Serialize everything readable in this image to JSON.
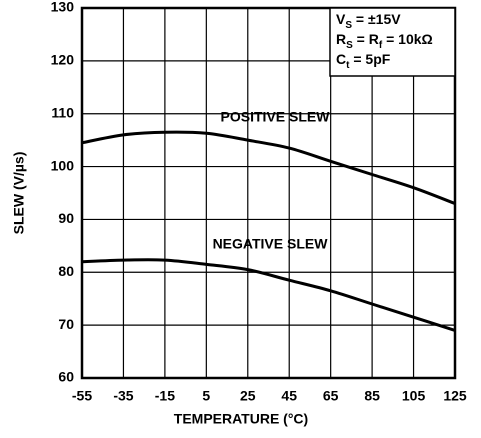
{
  "chart_data": {
    "type": "line",
    "x_label": "TEMPERATURE (°C)",
    "y_label": "SLEW (V/µs)",
    "x": [
      -55,
      -35,
      -15,
      5,
      25,
      45,
      65,
      85,
      105,
      125
    ],
    "series": [
      {
        "name": "POSITIVE SLEW",
        "color": "#000000",
        "values": [
          104.5,
          106,
          106.5,
          106.3,
          105,
          103.5,
          101,
          98.5,
          96,
          93
        ]
      },
      {
        "name": "NEGATIVE SLEW",
        "color": "#000000",
        "values": [
          82,
          82.3,
          82.3,
          81.5,
          80.5,
          78.5,
          76.5,
          74,
          71.5,
          69
        ]
      }
    ],
    "xlim": [
      -55,
      125
    ],
    "xticks": [
      -55,
      -35,
      -15,
      5,
      25,
      45,
      65,
      85,
      105,
      125
    ],
    "ylim": [
      60,
      130
    ],
    "yticks": [
      60,
      70,
      80,
      90,
      100,
      110,
      120,
      130
    ],
    "grid": true,
    "annotation": [
      [
        {
          "text": "V"
        },
        {
          "text": "S",
          "sub": true
        },
        {
          "text": " = ±15V"
        }
      ],
      [
        {
          "text": "R"
        },
        {
          "text": "S",
          "sub": true
        },
        {
          "text": " = R"
        },
        {
          "text": "f",
          "sub": true
        },
        {
          "text": " = 10kΩ"
        }
      ],
      [
        {
          "text": "C"
        },
        {
          "text": "t",
          "sub": true
        },
        {
          "text": " = 5pF"
        }
      ]
    ]
  }
}
